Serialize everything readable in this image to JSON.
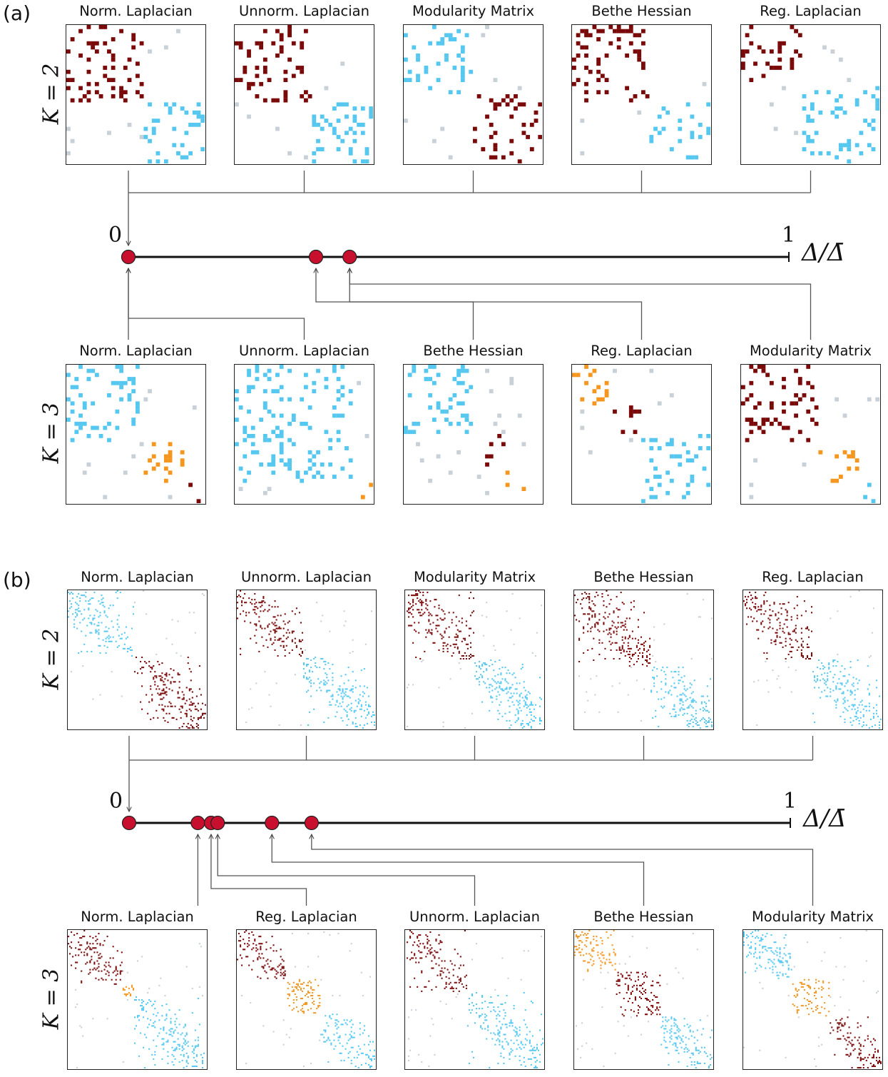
{
  "panels": [
    {
      "id": "a",
      "label": "(a)",
      "k_top": "K = 2",
      "k_bottom": "K = 3",
      "axis": {
        "start": "0",
        "end": "1",
        "label": "Δ/Δ̄"
      },
      "top_titles": [
        "Norm. Laplacian",
        "Unnorm. Laplacian",
        "Modularity Matrix",
        "Bethe Hessian",
        "Reg. Laplacian"
      ],
      "bottom_titles": [
        "Norm. Laplacian",
        "Unnorm. Laplacian",
        "Bethe Hessian",
        "Reg. Laplacian",
        "Modularity Matrix"
      ],
      "top_point_values": [
        0
      ],
      "bottom_point_values": [
        0,
        0.284,
        0.335
      ],
      "bottom_point_links": [
        0,
        0,
        1,
        2,
        2
      ]
    },
    {
      "id": "b",
      "label": "(b)",
      "k_top": "K = 2",
      "k_bottom": "K = 3",
      "axis": {
        "start": "0",
        "end": "1",
        "label": "Δ/Δ̄"
      },
      "top_titles": [
        "Norm. Laplacian",
        "Unnorm. Laplacian",
        "Modularity Matrix",
        "Bethe Hessian",
        "Reg. Laplacian"
      ],
      "bottom_titles": [
        "Norm. Laplacian",
        "Reg. Laplacian",
        "Unnorm. Laplacian",
        "Bethe Hessian",
        "Modularity Matrix"
      ],
      "top_point_values": [
        0
      ],
      "bottom_point_values": [
        0,
        0.104,
        0.124,
        0.134,
        0.216,
        0.276
      ],
      "bottom_point_links": [
        1,
        2,
        3,
        4,
        5
      ]
    }
  ],
  "colors": {
    "dark_red": "#7a0a0a",
    "cyan": "#56c8f0",
    "orange": "#f5961e",
    "gray": "#c8d0d8",
    "point": "#c8102e"
  }
}
